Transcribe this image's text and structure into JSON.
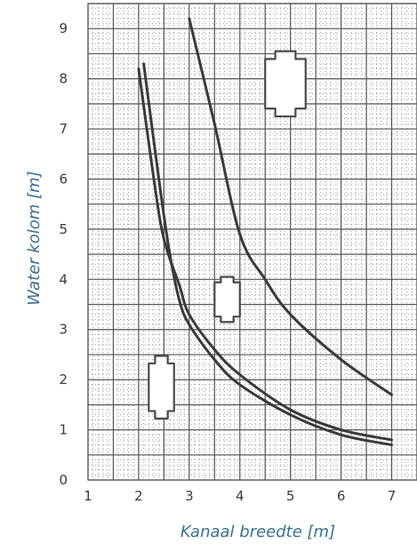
{
  "chart_data": {
    "type": "line",
    "xlabel": "Kanaal breedte [m]",
    "ylabel": "Water kolom [m]",
    "xlim": [
      1,
      7.5
    ],
    "ylim": [
      0,
      9.5
    ],
    "xticks": [
      "1",
      "2",
      "3",
      "4",
      "5",
      "6",
      "7"
    ],
    "yticks": [
      "0",
      "1",
      "2",
      "3",
      "4",
      "5",
      "6",
      "7",
      "8",
      "9"
    ],
    "grid": true,
    "series": [
      {
        "x": [
          2.0,
          2.3,
          2.5,
          2.8,
          3.0,
          3.5,
          4.0,
          5.0,
          6.0,
          7.0
        ],
        "y": [
          8.2,
          6.0,
          4.8,
          3.9,
          3.3,
          2.6,
          2.1,
          1.4,
          1.0,
          0.8
        ]
      },
      {
        "x": [
          2.1,
          2.4,
          2.6,
          2.8,
          3.0,
          3.5,
          4.0,
          5.0,
          6.0,
          7.0
        ],
        "y": [
          8.3,
          6.0,
          4.6,
          3.6,
          3.1,
          2.4,
          1.9,
          1.3,
          0.9,
          0.7
        ]
      },
      {
        "x": [
          3.0,
          3.5,
          4.0,
          4.5,
          5.0,
          6.0,
          7.0
        ],
        "y": [
          9.2,
          7.1,
          4.9,
          4.0,
          3.3,
          2.4,
          1.7
        ]
      }
    ],
    "icons": [
      {
        "name": "large-bottle-icon",
        "x": 4.9,
        "y": 7.9,
        "w": 0.8,
        "h": 1.3
      },
      {
        "name": "medium-bottle-icon",
        "x": 3.75,
        "y": 3.6,
        "w": 0.5,
        "h": 0.9
      },
      {
        "name": "small-bottle-icon",
        "x": 2.45,
        "y": 1.85,
        "w": 0.5,
        "h": 1.25
      }
    ]
  }
}
